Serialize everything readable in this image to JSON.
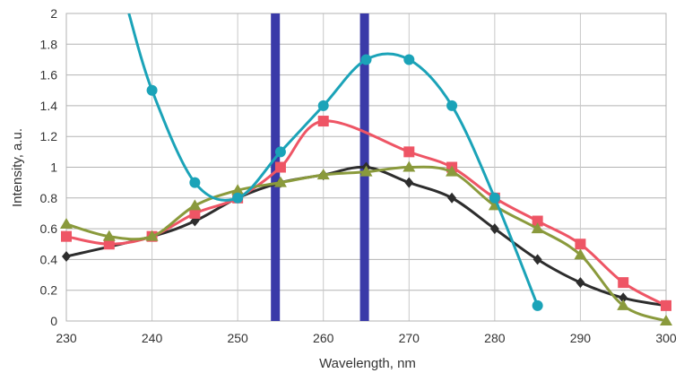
{
  "chart_data": {
    "type": "line",
    "title": "",
    "xlabel": "Wavelength, nm",
    "ylabel": "Intensity, a.u.",
    "xlim": [
      230,
      300
    ],
    "ylim": [
      0,
      2
    ],
    "xticks": [
      230,
      240,
      250,
      260,
      270,
      280,
      290,
      300
    ],
    "yticks": [
      0,
      0.2,
      0.4,
      0.6,
      0.8,
      1,
      1.2,
      1.4,
      1.6,
      1.8,
      2
    ],
    "xtick_labels": [
      "230",
      "240",
      "250",
      "260",
      "270",
      "280",
      "290",
      "300"
    ],
    "ytick_labels": [
      "0",
      "0.2",
      "0.4",
      "0.6",
      "0.8",
      "1",
      "1.2",
      "1.4",
      "1.6",
      "1.8",
      "2"
    ],
    "grid": "horizontal",
    "legend": "none",
    "series": [
      {
        "color": "#2d2d2d",
        "marker": "diamond",
        "x": [
          230,
          240,
          245,
          250,
          255,
          260,
          265,
          270,
          275,
          280,
          285,
          290,
          295,
          300
        ],
        "y": [
          0.42,
          0.55,
          0.65,
          0.8,
          0.9,
          0.95,
          1.0,
          0.9,
          0.8,
          0.6,
          0.4,
          0.25,
          0.15,
          0.1
        ]
      },
      {
        "color": "#ee5565",
        "marker": "square",
        "x": [
          230,
          235,
          240,
          245,
          250,
          255,
          260,
          270,
          275,
          280,
          285,
          290,
          295,
          300
        ],
        "y": [
          0.55,
          0.5,
          0.55,
          0.7,
          0.8,
          1.0,
          1.3,
          1.1,
          1.0,
          0.8,
          0.65,
          0.5,
          0.25,
          0.1
        ]
      },
      {
        "color": "#8a9a3c",
        "marker": "triangle",
        "x": [
          230,
          235,
          240,
          245,
          250,
          255,
          260,
          265,
          270,
          275,
          280,
          285,
          290,
          295,
          300
        ],
        "y": [
          0.63,
          0.55,
          0.55,
          0.75,
          0.85,
          0.9,
          0.95,
          0.97,
          1.0,
          0.97,
          0.75,
          0.6,
          0.43,
          0.1,
          0.0
        ]
      },
      {
        "color": "#1ba3b8",
        "marker": "circle",
        "x": [
          237.3,
          240,
          245,
          250,
          255,
          260,
          265,
          270,
          275,
          280,
          285
        ],
        "y": [
          2.0,
          1.5,
          0.9,
          0.8,
          1.1,
          1.4,
          1.7,
          1.7,
          1.4,
          0.8,
          0.1
        ]
      }
    ],
    "vertical_bands": [
      {
        "x": 254.4,
        "color": "#3a3aa8"
      },
      {
        "x": 264.8,
        "color": "#3a3aa8"
      }
    ]
  }
}
